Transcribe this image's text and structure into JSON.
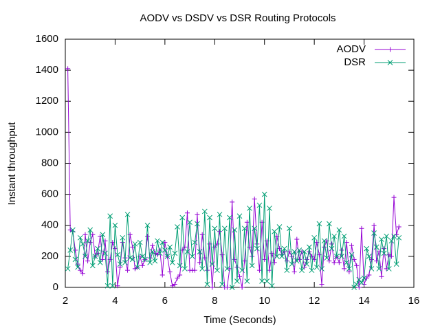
{
  "chart_data": {
    "type": "line",
    "title": "AODV vs DSDV vs DSR Routing Protocols",
    "xlabel": "Time (Seconds)",
    "ylabel": "Instant throughput",
    "xlim": [
      2,
      16
    ],
    "ylim": [
      0,
      1600
    ],
    "xticks": [
      2,
      4,
      6,
      8,
      10,
      12,
      14,
      16
    ],
    "yticks": [
      0,
      200,
      400,
      600,
      800,
      1000,
      1200,
      1400,
      1600
    ],
    "grid": false,
    "legend": "top-right",
    "x": [
      2.1,
      2.2,
      2.3,
      2.4,
      2.5,
      2.6,
      2.7,
      2.8,
      2.9,
      3.0,
      3.1,
      3.2,
      3.3,
      3.4,
      3.5,
      3.6,
      3.7,
      3.8,
      3.9,
      4.0,
      4.1,
      4.2,
      4.3,
      4.4,
      4.5,
      4.6,
      4.7,
      4.8,
      4.9,
      5.0,
      5.1,
      5.2,
      5.3,
      5.4,
      5.5,
      5.6,
      5.7,
      5.8,
      5.9,
      6.0,
      6.1,
      6.2,
      6.3,
      6.4,
      6.5,
      6.6,
      6.7,
      6.8,
      6.9,
      7.0,
      7.1,
      7.2,
      7.3,
      7.4,
      7.5,
      7.6,
      7.7,
      7.8,
      7.9,
      8.0,
      8.1,
      8.2,
      8.3,
      8.4,
      8.5,
      8.6,
      8.7,
      8.8,
      8.9,
      9.0,
      9.1,
      9.2,
      9.3,
      9.4,
      9.5,
      9.6,
      9.7,
      9.8,
      9.9,
      10.0,
      10.1,
      10.2,
      10.3,
      10.4,
      10.5,
      10.6,
      10.7,
      10.8,
      10.9,
      11.0,
      11.1,
      11.2,
      11.3,
      11.4,
      11.5,
      11.6,
      11.7,
      11.8,
      11.9,
      12.0,
      12.1,
      12.2,
      12.3,
      12.4,
      12.5,
      12.6,
      12.7,
      12.8,
      12.9,
      13.0,
      13.1,
      13.2,
      13.3,
      13.4,
      13.5,
      13.6,
      13.7,
      13.8,
      13.9,
      14.0,
      14.1,
      14.2,
      14.3,
      14.4,
      14.5,
      14.6,
      14.7,
      14.8,
      14.9,
      15.0,
      15.1,
      15.2,
      15.3,
      15.4
    ],
    "series": [
      {
        "name": "AODV",
        "color": "#9400d3",
        "marker": "plus",
        "values": [
          1410,
          370,
          360,
          240,
          150,
          110,
          90,
          340,
          170,
          290,
          340,
          200,
          220,
          330,
          180,
          300,
          100,
          180,
          290,
          250,
          10,
          130,
          290,
          190,
          110,
          340,
          260,
          120,
          130,
          200,
          140,
          180,
          330,
          190,
          270,
          220,
          210,
          240,
          80,
          290,
          200,
          100,
          10,
          20,
          60,
          80,
          240,
          260,
          480,
          110,
          110,
          110,
          470,
          160,
          340,
          190,
          110,
          280,
          0,
          260,
          280,
          360,
          210,
          0,
          0,
          120,
          550,
          180,
          130,
          70,
          0,
          170,
          420,
          260,
          200,
          570,
          280,
          110,
          420,
          180,
          300,
          110,
          220,
          160,
          330,
          250,
          210,
          230,
          170,
          230,
          200,
          100,
          310,
          180,
          230,
          130,
          180,
          230,
          200,
          180,
          290,
          210,
          20,
          260,
          300,
          170,
          280,
          160,
          200,
          160,
          240,
          120,
          290,
          100,
          270,
          180,
          140,
          0,
          380,
          20,
          60,
          80,
          180,
          400,
          170,
          230,
          70,
          250,
          120,
          210,
          200,
          580,
          340,
          390
        ]
      },
      {
        "name": "DSR",
        "color": "#009e73",
        "marker": "cross",
        "values": [
          120,
          240,
          370,
          180,
          130,
          320,
          280,
          200,
          300,
          370,
          140,
          200,
          250,
          160,
          340,
          220,
          10,
          460,
          10,
          400,
          210,
          150,
          320,
          160,
          470,
          190,
          180,
          280,
          130,
          290,
          200,
          180,
          400,
          160,
          230,
          170,
          300,
          220,
          290,
          240,
          200,
          260,
          160,
          220,
          390,
          140,
          450,
          120,
          230,
          420,
          200,
          290,
          410,
          230,
          120,
          490,
          20,
          450,
          150,
          380,
          110,
          470,
          20,
          380,
          120,
          450,
          0,
          370,
          40,
          460,
          110,
          380,
          40,
          510,
          140,
          380,
          250,
          530,
          40,
          600,
          40,
          510,
          10,
          360,
          200,
          390,
          200,
          250,
          110,
          380,
          150,
          230,
          170,
          240,
          110,
          230,
          150,
          260,
          110,
          320,
          130,
          410,
          120,
          300,
          190,
          410,
          250,
          330,
          200,
          370,
          200,
          330,
          160,
          120,
          210,
          0,
          20,
          50,
          30,
          60,
          250,
          200,
          120,
          350,
          260,
          120,
          310,
          220,
          330,
          120,
          300,
          330,
          150,
          320
        ]
      }
    ]
  }
}
